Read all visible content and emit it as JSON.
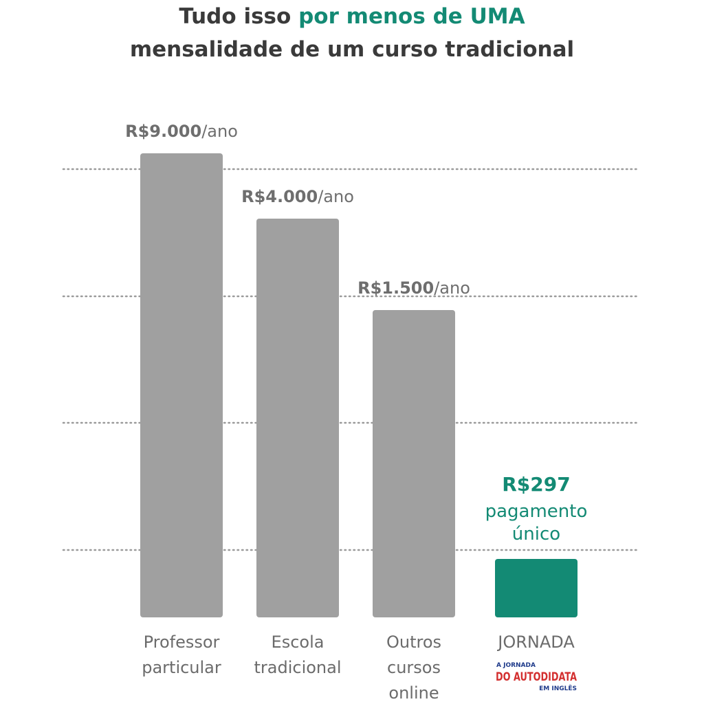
{
  "title": {
    "prefix": "Tudo isso ",
    "accent": "por menos de UMA",
    "line2": "mensalidade de um curso tradicional"
  },
  "colors": {
    "bar": "#a0a0a0",
    "highlight": "#138a74",
    "title": "#3a3a3a",
    "grid": "#9a9a9a"
  },
  "chart_data": {
    "type": "bar",
    "unit": "R$",
    "grid": true,
    "grid_style": "dotted",
    "categories": [
      [
        "Professor",
        "particular"
      ],
      [
        "Escola",
        "tradicional"
      ],
      [
        "Outros",
        "cursos",
        "online"
      ],
      [
        "JORNADA"
      ]
    ],
    "values": [
      9000,
      4000,
      1500,
      297
    ],
    "value_labels": [
      {
        "bold": "R$9.000",
        "rest": "/ano"
      },
      {
        "bold": "R$4.000",
        "rest": "/ano"
      },
      {
        "bold": "R$1.500",
        "rest": "/ano"
      }
    ],
    "highlight": {
      "index": 3,
      "price": "R$297",
      "line1": "pagamento",
      "line2": "único"
    },
    "logo": {
      "top": "A JORNADA",
      "main": "DO AUTODIDATA",
      "bottom": "EM INGLÊS"
    }
  }
}
